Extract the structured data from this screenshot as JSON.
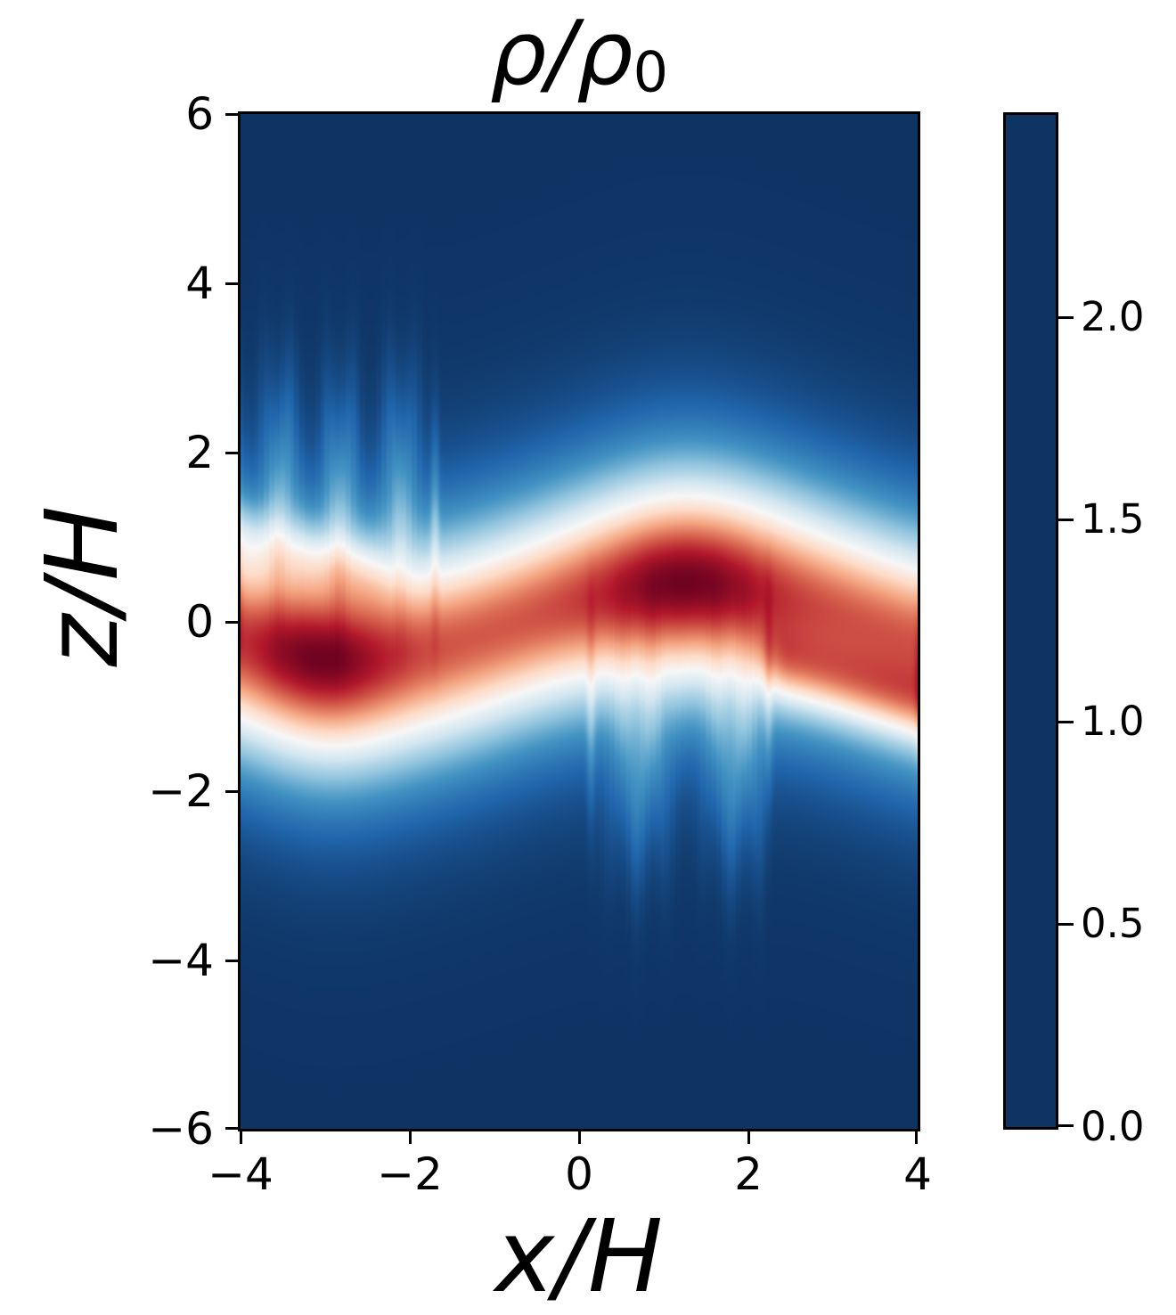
{
  "title": {
    "main": "ρ/ρ",
    "sub": "0",
    "text": "ρ/ρ₀"
  },
  "axes": {
    "xlabel": "x/H",
    "ylabel": "z/H",
    "x_ticks": [
      "−4",
      "−2",
      "0",
      "2",
      "4"
    ],
    "y_ticks": [
      "6",
      "4",
      "2",
      "0",
      "−2",
      "−4",
      "−6"
    ]
  },
  "colorbar": {
    "ticks": [
      "2.0",
      "1.5",
      "1.0",
      "0.5",
      "0.0"
    ],
    "vmin": 0.0,
    "vmax": 2.5,
    "orientation": "vertical"
  },
  "chart_data": {
    "type": "heatmap",
    "title": "ρ/ρ₀",
    "xlabel": "x/H",
    "ylabel": "z/H",
    "xlim": [
      -4,
      4
    ],
    "ylim": [
      -6,
      6
    ],
    "clim": [
      0,
      2.5
    ],
    "colorbar_tick_values": [
      2.0,
      1.5,
      1.0,
      0.5,
      0.0
    ],
    "colormap": "RdBu_r",
    "colormap_stops": [
      "#0e3464",
      "#2166ac",
      "#4393c3",
      "#92c5de",
      "#d1e5f0",
      "#f7f7f7",
      "#fddbc7",
      "#f4a582",
      "#d6604d",
      "#b2182b",
      "#67001f"
    ],
    "description": "Normalized gas density ρ/ρ0 in the x–z plane: a dense wavy midplane band (peak ≈ 2.47) bending sinusoidally with crest near x=1.3 (z≈+0.46) and trough near x=-2.9 (z≈-0.46), dark density cores near x=-3.05 and x=1.25, white ρ≈1.25 contour edges, faint caustic flame plumes above the band for -3.9<x<-1.7 and below it for 0.1<x<2.3, and diagonal fold tails toward the lower-right and upper-left.",
    "field_model": {
      "band": {
        "z0_amp": 0.46,
        "crest_x": 1.3,
        "wavelength": 8.0,
        "thickness": 1.17,
        "base_amp": 2.02,
        "cores": [
          {
            "x": -3.05,
            "sigma": 0.85,
            "amp": 0.45
          },
          {
            "x": 1.25,
            "sigma": 1.05,
            "amp": 0.45
          }
        ]
      },
      "tails": [
        {
          "side": "lower-right",
          "x_ref": 2.0,
          "z_ref": -0.4,
          "slope": -0.29,
          "sigma": 0.42,
          "amp": 0.6,
          "fade_from": 1.9,
          "fade_to": 2.5
        },
        {
          "side": "upper-left",
          "x_ref": -2.0,
          "z_ref": 0.42,
          "slope": -0.29,
          "sigma": 0.4,
          "amp": 0.3,
          "fade_from": 2.0,
          "fade_to": 2.6
        }
      ],
      "flames": [
        {
          "dir": 1,
          "x_in": [
            -4.3,
            -3.8
          ],
          "x_out": [
            -1.76,
            -1.62
          ],
          "bump_x": -2.85,
          "bump_period": 0.7,
          "dz": 1.9,
          "sigma_z": 1.2,
          "amp": 0.33
        },
        {
          "dir": -1,
          "x_in": [
            0.06,
            0.18
          ],
          "x_out": [
            2.14,
            2.3
          ],
          "bump_x": 1.82,
          "bump_period": 1.12,
          "dz": 1.9,
          "sigma_z": 1.2,
          "amp": 0.33
        }
      ],
      "ridges": [
        {
          "x": -1.7,
          "dz": 1.5,
          "amp": 0.22,
          "sigma_x": 0.05,
          "sigma_z": 1.2
        },
        {
          "x": 0.14,
          "dz": -1.4,
          "amp": 0.2,
          "sigma_x": 0.05,
          "sigma_z": 1.2
        },
        {
          "x": 2.24,
          "dz": -1.3,
          "amp": 0.2,
          "sigma_x": 0.05,
          "sigma_z": 1.2
        },
        {
          "x": 4.04,
          "dz": -0.5,
          "amp": 0.28,
          "sigma_x": 0.06,
          "sigma_z": 0.8
        },
        {
          "x": -4.04,
          "dz": 0.6,
          "amp": 0.22,
          "sigma_x": 0.06,
          "sigma_z": 0.75
        }
      ],
      "quant_step": 0.06,
      "peak": 2.49
    }
  }
}
